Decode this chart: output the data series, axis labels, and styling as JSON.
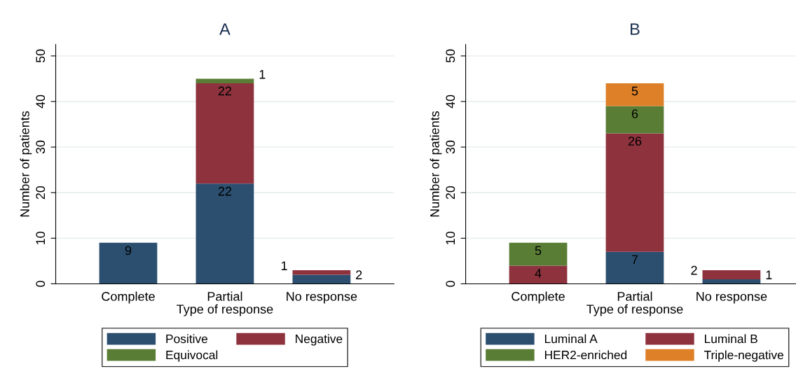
{
  "chart_data": [
    {
      "type": "bar",
      "title": "A",
      "xlabel": "Type of response",
      "ylabel": "Number of patients",
      "categories": [
        "Complete",
        "Partial",
        "No response"
      ],
      "stacked": true,
      "ylim": [
        0,
        52.5
      ],
      "yticks": [
        0,
        10,
        20,
        30,
        40,
        50
      ],
      "grid": "y",
      "legend": "bottom",
      "data_labels": true,
      "series": [
        {
          "name": "Positive",
          "color": "#2c4f70",
          "values": [
            9,
            22,
            2
          ]
        },
        {
          "name": "Negative",
          "color": "#8e333e",
          "values": [
            null,
            22,
            1
          ]
        },
        {
          "name": "Equivocal",
          "color": "#5a7d36",
          "values": [
            null,
            1,
            null
          ]
        }
      ]
    },
    {
      "type": "bar",
      "title": "B",
      "xlabel": "Type of response",
      "ylabel": "Number of patients",
      "categories": [
        "Complete",
        "Partial",
        "No response"
      ],
      "stacked": true,
      "ylim": [
        0,
        52.5
      ],
      "yticks": [
        0,
        10,
        20,
        30,
        40,
        50
      ],
      "grid": "y",
      "legend": "bottom",
      "data_labels": true,
      "series": [
        {
          "name": "Luminal A",
          "color": "#2c4f70",
          "values": [
            null,
            7,
            1
          ]
        },
        {
          "name": "Luminal B",
          "color": "#8e333e",
          "values": [
            4,
            26,
            2
          ]
        },
        {
          "name": "HER2-enriched",
          "color": "#5a7d36",
          "values": [
            5,
            6,
            null
          ]
        },
        {
          "name": "Triple-negative",
          "color": "#dd8027",
          "values": [
            null,
            5,
            null
          ]
        }
      ]
    }
  ]
}
